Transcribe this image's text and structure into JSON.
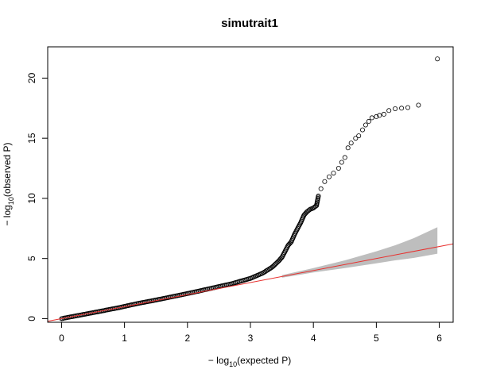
{
  "chart_data": {
    "type": "scatter",
    "title": "simutrait1",
    "xlabel": {
      "prefix": "− log",
      "sub": "10",
      "suffix": "(expected P)"
    },
    "ylabel": {
      "prefix": "− log",
      "sub": "10",
      "suffix": "(observed P)"
    },
    "xlim": [
      -0.22,
      6.22
    ],
    "ylim": [
      -0.3,
      22.6
    ],
    "x_ticks": [
      0,
      1,
      2,
      3,
      4,
      5,
      6
    ],
    "y_ticks": [
      0,
      5,
      10,
      15,
      20
    ],
    "grid": false,
    "legend": "none",
    "reference_line": {
      "slope": 1,
      "intercept": 0,
      "color": "#e8302e"
    },
    "confidence_band": {
      "color": "#bebebe",
      "x": [
        3.5,
        4.0,
        4.5,
        5.0,
        5.3,
        5.6,
        5.97
      ],
      "upper": [
        3.62,
        4.2,
        4.85,
        5.6,
        6.1,
        6.7,
        7.6
      ],
      "lower": [
        3.4,
        3.84,
        4.2,
        4.6,
        4.85,
        5.05,
        5.4
      ]
    },
    "series": [
      {
        "points": [
          [
            0.0,
            0.0
          ],
          [
            0.3,
            0.3
          ],
          [
            0.6,
            0.6
          ],
          [
            0.9,
            0.9
          ],
          [
            1.2,
            1.25
          ],
          [
            1.5,
            1.55
          ],
          [
            1.8,
            1.87
          ],
          [
            2.1,
            2.2
          ],
          [
            2.4,
            2.55
          ],
          [
            2.7,
            2.9
          ],
          [
            3.0,
            3.35
          ],
          [
            3.2,
            3.8
          ],
          [
            3.35,
            4.3
          ],
          [
            3.45,
            4.8
          ],
          [
            3.5,
            5.1
          ],
          [
            3.55,
            5.6
          ],
          [
            3.6,
            6.1
          ],
          [
            3.65,
            6.4
          ],
          [
            3.7,
            7.0
          ],
          [
            3.75,
            7.5
          ],
          [
            3.8,
            8.0
          ],
          [
            3.85,
            8.6
          ],
          [
            3.9,
            8.9
          ],
          [
            3.95,
            9.1
          ],
          [
            4.0,
            9.2
          ],
          [
            4.05,
            9.4
          ],
          [
            4.08,
            10.2
          ],
          [
            4.12,
            10.8
          ],
          [
            4.18,
            11.4
          ],
          [
            4.25,
            11.8
          ],
          [
            4.32,
            12.1
          ],
          [
            4.4,
            12.5
          ],
          [
            4.45,
            13.0
          ],
          [
            4.5,
            13.4
          ],
          [
            4.55,
            14.2
          ],
          [
            4.6,
            14.6
          ],
          [
            4.67,
            15.0
          ],
          [
            4.72,
            15.2
          ],
          [
            4.78,
            15.7
          ],
          [
            4.83,
            16.1
          ],
          [
            4.88,
            16.4
          ],
          [
            4.93,
            16.7
          ],
          [
            5.0,
            16.8
          ],
          [
            5.05,
            16.9
          ],
          [
            5.12,
            17.0
          ],
          [
            5.2,
            17.3
          ],
          [
            5.3,
            17.45
          ],
          [
            5.4,
            17.5
          ],
          [
            5.5,
            17.55
          ],
          [
            5.67,
            17.75
          ],
          [
            5.97,
            21.6
          ]
        ]
      }
    ]
  }
}
